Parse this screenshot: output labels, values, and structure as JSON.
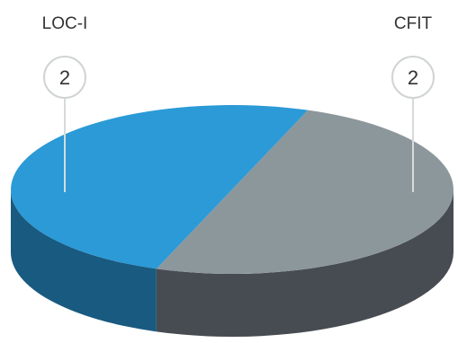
{
  "chart_data": {
    "type": "pie",
    "style": "3d",
    "title": "",
    "categories": [
      "LOC-I",
      "CFIT"
    ],
    "values": [
      2,
      2
    ],
    "legend": "none",
    "data_labels": "callout-circles",
    "colors": {
      "top": [
        "#8c979c",
        "#2b9ad6"
      ],
      "side": [
        "#474c52",
        "#195a80"
      ]
    }
  }
}
